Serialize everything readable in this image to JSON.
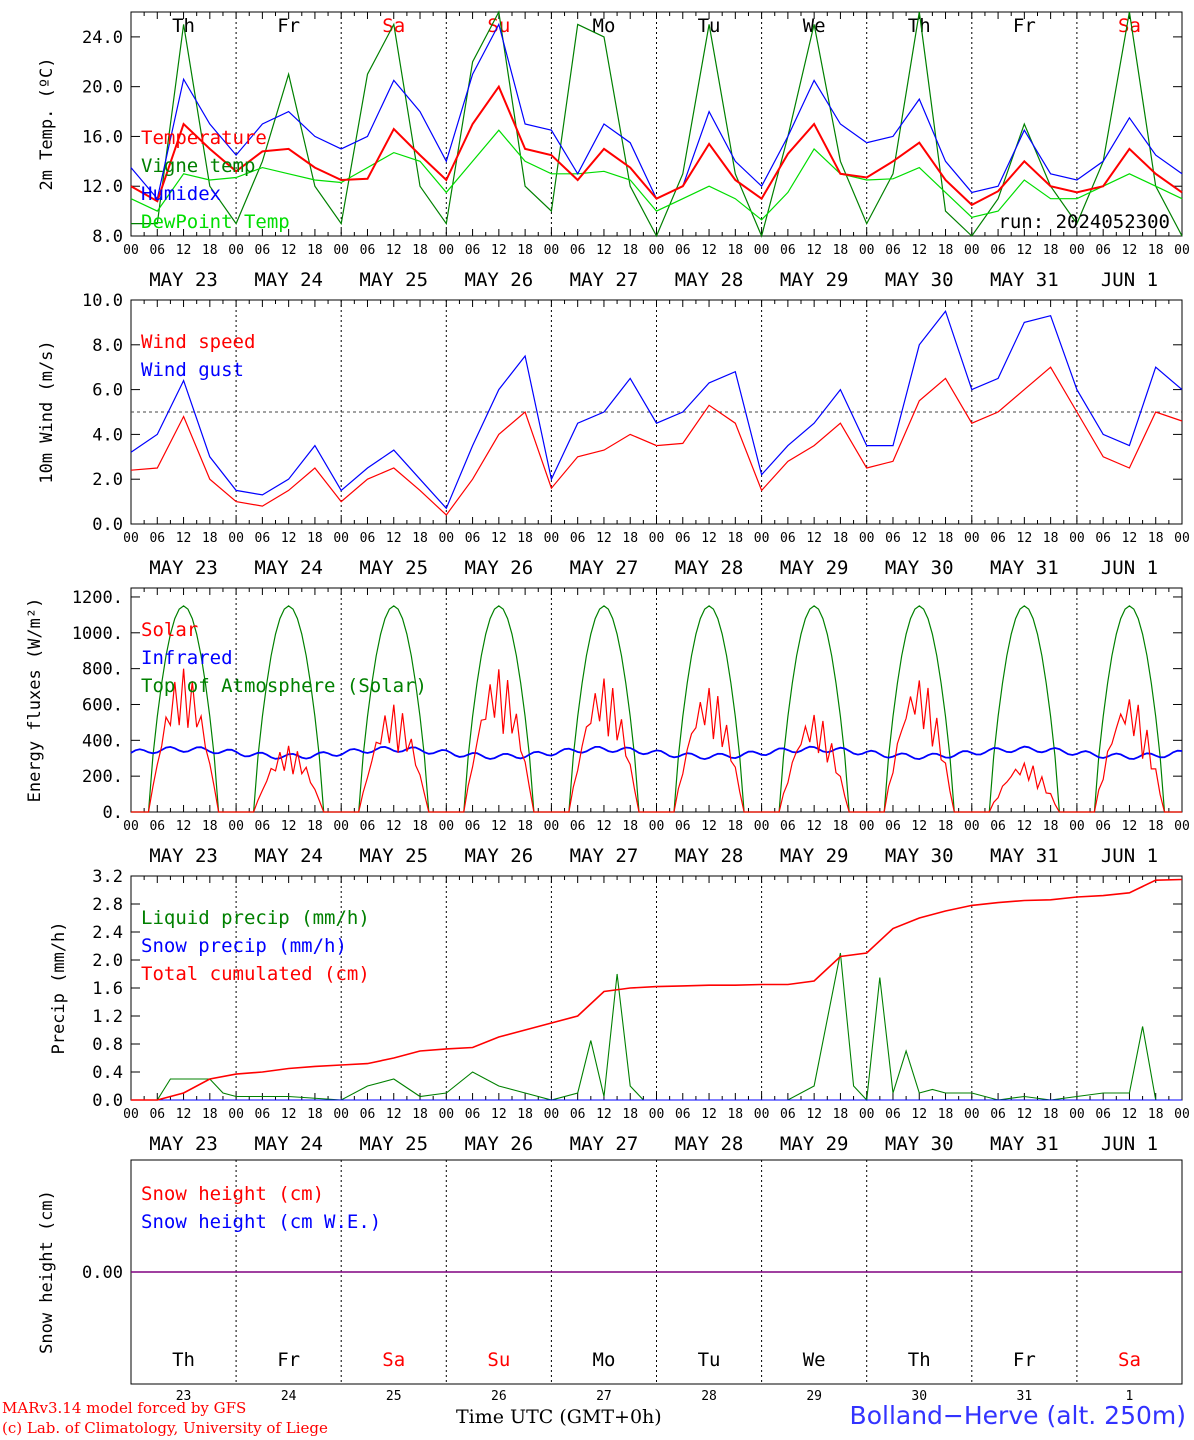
{
  "run_label": "run: 2024052300",
  "site_title": "Bolland−Herve (alt. 250m)",
  "footer_line1": "MARv3.14 model forced by GFS",
  "footer_line2": "(c) Lab. of Climatology, University of Liege",
  "time_axis_label": "Time UTC (GMT+0h)",
  "colors": {
    "red": "#ff0000",
    "green": "#008000",
    "blue": "#0000ff",
    "lightgreen": "#00dd00",
    "purple": "#800080"
  },
  "days": {
    "weekdays": [
      "Th",
      "Fr",
      "Sa",
      "Su",
      "Mo",
      "Tu",
      "We",
      "Th",
      "Fr",
      "Sa"
    ],
    "weekend_flags": [
      false,
      false,
      true,
      true,
      false,
      false,
      false,
      false,
      false,
      true
    ],
    "date_labels": [
      "MAY 23",
      "MAY 24",
      "MAY 25",
      "MAY 26",
      "MAY 27",
      "MAY 28",
      "MAY 29",
      "MAY 30",
      "MAY 31",
      "JUN  1"
    ],
    "day_numbers": [
      "23",
      "24",
      "25",
      "26",
      "27",
      "28",
      "29",
      "30",
      "31",
      "1"
    ],
    "hour_labels": [
      "00",
      "06",
      "12",
      "18"
    ]
  },
  "chart_data": [
    {
      "type": "line",
      "ylabel": "2m Temp. (ºC)",
      "ylim": [
        8,
        26
      ],
      "yticks": [
        8,
        12,
        16,
        20,
        24
      ],
      "ytick_labels": [
        "8.0",
        "12.0",
        "16.0",
        "20.0",
        "24.0"
      ],
      "x_unit": "hours since 00 UTC May 23",
      "series": [
        {
          "name": "Temperature",
          "color": "#ff0000",
          "x": [
            0,
            6,
            12,
            18,
            24,
            30,
            36,
            42,
            48,
            54,
            60,
            66,
            72,
            78,
            84,
            90,
            96,
            102,
            108,
            114,
            120,
            126,
            132,
            138,
            144,
            150,
            156,
            162,
            168,
            174,
            180,
            186,
            192,
            198,
            204,
            210,
            216,
            222,
            228,
            234,
            240
          ],
          "values": [
            12,
            10.8,
            17,
            15,
            13.2,
            14.8,
            15,
            13.5,
            12.5,
            12.6,
            16.6,
            14.5,
            12.5,
            17,
            20,
            15,
            14.5,
            12.5,
            15,
            13.5,
            11,
            12,
            15.4,
            12.5,
            11,
            14.6,
            17,
            13,
            12.7,
            14,
            15.5,
            12.5,
            10.5,
            11.6,
            14,
            12,
            11.5,
            12,
            15,
            13,
            11.5
          ]
        },
        {
          "name": "Vigne temp",
          "color": "#008000",
          "x": [
            0,
            6,
            12,
            18,
            24,
            30,
            36,
            42,
            48,
            54,
            60,
            66,
            72,
            78,
            84,
            90,
            96,
            102,
            108,
            114,
            120,
            126,
            132,
            138,
            144,
            150,
            156,
            162,
            168,
            174,
            180,
            186,
            192,
            198,
            204,
            210,
            216,
            222,
            228,
            234,
            240
          ],
          "values": [
            9,
            9,
            25,
            12,
            9,
            14,
            21,
            12,
            9,
            21,
            25,
            12,
            9,
            22,
            26,
            12,
            10,
            25,
            24,
            12,
            8,
            13,
            25,
            13,
            8,
            16,
            25,
            14,
            9,
            13,
            26,
            10,
            8,
            11,
            17,
            12,
            9,
            14,
            26,
            12,
            8
          ]
        },
        {
          "name": "Humidex",
          "color": "#0000ff",
          "x": [
            0,
            6,
            12,
            18,
            24,
            30,
            36,
            42,
            48,
            54,
            60,
            66,
            72,
            78,
            84,
            90,
            96,
            102,
            108,
            114,
            120,
            126,
            132,
            138,
            144,
            150,
            156,
            162,
            168,
            174,
            180,
            186,
            192,
            198,
            204,
            210,
            216,
            222,
            228,
            234,
            240
          ],
          "values": [
            13.5,
            11,
            20.6,
            17,
            14.5,
            17,
            18,
            16,
            15,
            16,
            20.5,
            18,
            14,
            21,
            25,
            17,
            16.5,
            13,
            17,
            15.5,
            11,
            12,
            18,
            14,
            12,
            16,
            20.5,
            17,
            15.5,
            16,
            19,
            14,
            11.5,
            12,
            16.5,
            13,
            12.5,
            14,
            17.5,
            14.5,
            13
          ]
        },
        {
          "name": "DewPoint Temp",
          "color": "#00dd00",
          "x": [
            0,
            6,
            12,
            18,
            24,
            30,
            36,
            42,
            48,
            54,
            60,
            66,
            72,
            78,
            84,
            90,
            96,
            102,
            108,
            114,
            120,
            126,
            132,
            138,
            144,
            150,
            156,
            162,
            168,
            174,
            180,
            186,
            192,
            198,
            204,
            210,
            216,
            222,
            228,
            234,
            240
          ],
          "values": [
            11,
            10,
            13,
            12.5,
            12.7,
            13.5,
            13,
            12.5,
            12.3,
            13.5,
            14.7,
            14,
            11.5,
            14,
            16.5,
            14,
            13,
            13,
            13.2,
            12.5,
            10,
            11,
            12,
            11,
            9.3,
            11.5,
            15,
            13,
            12.5,
            12.6,
            13.5,
            11.5,
            9.5,
            10,
            12.5,
            11,
            11,
            12,
            13,
            12,
            11
          ]
        }
      ]
    },
    {
      "type": "line",
      "ylabel": "10m Wind (m/s)",
      "ylim": [
        0,
        10
      ],
      "yticks": [
        0,
        2,
        4,
        6,
        8,
        10
      ],
      "ytick_labels": [
        "0.0",
        "2.0",
        "4.0",
        "6.0",
        "8.0",
        "10.0"
      ],
      "reference_line": 5,
      "series": [
        {
          "name": "Wind speed",
          "color": "#ff0000",
          "x": [
            0,
            6,
            12,
            18,
            24,
            30,
            36,
            42,
            48,
            54,
            60,
            66,
            72,
            78,
            84,
            90,
            96,
            102,
            108,
            114,
            120,
            126,
            132,
            138,
            144,
            150,
            156,
            162,
            168,
            174,
            180,
            186,
            192,
            198,
            204,
            210,
            216,
            222,
            228,
            234,
            240
          ],
          "values": [
            2.4,
            2.5,
            4.8,
            2,
            1,
            0.8,
            1.5,
            2.5,
            1,
            2,
            2.5,
            1.5,
            0.4,
            2,
            4,
            5,
            1.6,
            3,
            3.3,
            4,
            3.5,
            3.6,
            5.3,
            4.5,
            1.5,
            2.8,
            3.5,
            4.5,
            2.5,
            2.8,
            5.5,
            6.5,
            4.5,
            5,
            6,
            7,
            5,
            3,
            2.5,
            5,
            4.6
          ]
        },
        {
          "name": "Wind gust",
          "color": "#0000ff",
          "x": [
            0,
            6,
            12,
            18,
            24,
            30,
            36,
            42,
            48,
            54,
            60,
            66,
            72,
            78,
            84,
            90,
            96,
            102,
            108,
            114,
            120,
            126,
            132,
            138,
            144,
            150,
            156,
            162,
            168,
            174,
            180,
            186,
            192,
            198,
            204,
            210,
            216,
            222,
            228,
            234,
            240
          ],
          "values": [
            3.2,
            4,
            6.4,
            3,
            1.5,
            1.3,
            2,
            3.5,
            1.5,
            2.5,
            3.3,
            2,
            0.7,
            3.5,
            6,
            7.5,
            2,
            4.5,
            5,
            6.5,
            4.5,
            5,
            6.3,
            6.8,
            2.2,
            3.5,
            4.5,
            6,
            3.5,
            3.5,
            8,
            9.5,
            6,
            6.5,
            9,
            9.3,
            6,
            4,
            3.5,
            7,
            6
          ]
        }
      ]
    },
    {
      "type": "line",
      "ylabel": "Energy fluxes (W/m²)",
      "ylim": [
        0,
        1250
      ],
      "yticks": [
        0,
        200,
        400,
        600,
        800,
        1000,
        1200
      ],
      "ytick_labels": [
        "0.",
        "200.",
        "400.",
        "600.",
        "800.",
        "1000.",
        "1200."
      ],
      "solar_peak_by_day": [
        800,
        370,
        600,
        800,
        750,
        700,
        550,
        750,
        280,
        650
      ],
      "infrared_mean": 330,
      "toa_peak": 1150,
      "series": [
        {
          "name": "Solar",
          "color": "#ff0000"
        },
        {
          "name": "Infrared",
          "color": "#0000ff"
        },
        {
          "name": "Top of Atmosphere (Solar)",
          "color": "#008000"
        }
      ]
    },
    {
      "type": "line",
      "ylabel": "Precip (mm/h)",
      "ylim": [
        0,
        3.2
      ],
      "yticks": [
        0,
        0.4,
        0.8,
        1.2,
        1.6,
        2.0,
        2.4,
        2.8,
        3.2
      ],
      "ytick_labels": [
        "0.0",
        "0.4",
        "0.8",
        "1.2",
        "1.6",
        "2.0",
        "2.4",
        "2.8",
        "3.2"
      ],
      "series": [
        {
          "name": "Liquid precip (mm/h)",
          "color": "#008000",
          "x": [
            0,
            6,
            9,
            12,
            15,
            18,
            21,
            24,
            30,
            36,
            48,
            54,
            60,
            66,
            72,
            78,
            84,
            90,
            96,
            102,
            105,
            108,
            111,
            114,
            117,
            120,
            126,
            132,
            138,
            144,
            150,
            156,
            162,
            165,
            168,
            171,
            174,
            177,
            180,
            183,
            186,
            192,
            198,
            204,
            210,
            216,
            222,
            228,
            231,
            234,
            240
          ],
          "values": [
            0,
            0,
            0.3,
            0.3,
            0.3,
            0.3,
            0.1,
            0.05,
            0.05,
            0.05,
            0,
            0.2,
            0.3,
            0.05,
            0.1,
            0.4,
            0.2,
            0.1,
            0,
            0.1,
            0.85,
            0.05,
            1.8,
            0.2,
            0,
            0,
            0,
            0,
            0,
            0,
            0,
            0.2,
            2.1,
            0.2,
            0,
            1.75,
            0.1,
            0.7,
            0.1,
            0.15,
            0.1,
            0.1,
            0,
            0.05,
            0,
            0.05,
            0.1,
            0.1,
            1.05,
            0,
            0
          ]
        },
        {
          "name": "Snow precip (mm/h)",
          "color": "#0000ff",
          "x": [
            0,
            240
          ],
          "values": [
            0,
            0
          ]
        },
        {
          "name": "Total cumulated (cm)",
          "color": "#ff0000",
          "x": [
            0,
            6,
            12,
            18,
            24,
            30,
            36,
            42,
            48,
            54,
            60,
            66,
            72,
            78,
            84,
            90,
            96,
            102,
            108,
            114,
            120,
            126,
            132,
            138,
            144,
            150,
            156,
            162,
            168,
            174,
            180,
            186,
            192,
            198,
            204,
            210,
            216,
            222,
            228,
            234,
            240
          ],
          "values": [
            0,
            0,
            0.1,
            0.3,
            0.37,
            0.4,
            0.45,
            0.48,
            0.5,
            0.52,
            0.6,
            0.7,
            0.73,
            0.75,
            0.9,
            1.0,
            1.1,
            1.2,
            1.55,
            1.6,
            1.62,
            1.63,
            1.64,
            1.64,
            1.65,
            1.65,
            1.7,
            2.05,
            2.1,
            2.45,
            2.6,
            2.7,
            2.78,
            2.82,
            2.85,
            2.86,
            2.9,
            2.92,
            2.96,
            3.14,
            3.15
          ]
        }
      ]
    },
    {
      "type": "line",
      "ylabel": "Snow height (cm)",
      "yticks": [
        0
      ],
      "ytick_labels": [
        "0.00"
      ],
      "series": [
        {
          "name": "Snow height (cm)",
          "color": "#ff0000",
          "x": [
            0,
            240
          ],
          "values": [
            0,
            0
          ]
        },
        {
          "name": "Snow height (cm W.E.)",
          "color": "#0000ff",
          "x": [
            0,
            240
          ],
          "values": [
            0,
            0
          ]
        }
      ]
    }
  ]
}
